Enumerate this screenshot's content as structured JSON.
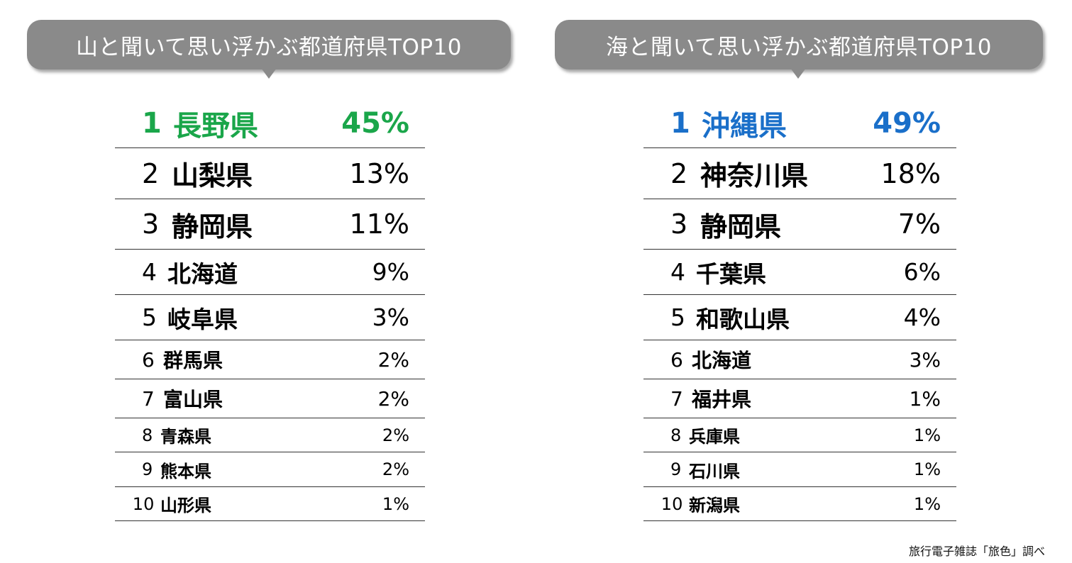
{
  "chart_data": [
    {
      "type": "table",
      "title": "山と聞いて思い浮かぶ都道府県TOP10",
      "highlight_color": "#1aa64a",
      "rows": [
        {
          "rank": "1",
          "name": "長野県",
          "value": "45%"
        },
        {
          "rank": "2",
          "name": "山梨県",
          "value": "13%"
        },
        {
          "rank": "3",
          "name": "静岡県",
          "value": "11%"
        },
        {
          "rank": "4",
          "name": "北海道",
          "value": "9%"
        },
        {
          "rank": "5",
          "name": "岐阜県",
          "value": "3%"
        },
        {
          "rank": "6",
          "name": "群馬県",
          "value": "2%"
        },
        {
          "rank": "7",
          "name": "富山県",
          "value": "2%"
        },
        {
          "rank": "8",
          "name": "青森県",
          "value": "2%"
        },
        {
          "rank": "9",
          "name": "熊本県",
          "value": "2%"
        },
        {
          "rank": "10",
          "name": "山形県",
          "value": "1%"
        }
      ]
    },
    {
      "type": "table",
      "title": "海と聞いて思い浮かぶ都道府県TOP10",
      "highlight_color": "#1a6fc9",
      "rows": [
        {
          "rank": "1",
          "name": "沖縄県",
          "value": "49%"
        },
        {
          "rank": "2",
          "name": "神奈川県",
          "value": "18%"
        },
        {
          "rank": "3",
          "name": "静岡県",
          "value": "7%"
        },
        {
          "rank": "4",
          "name": "千葉県",
          "value": "6%"
        },
        {
          "rank": "5",
          "name": "和歌山県",
          "value": "4%"
        },
        {
          "rank": "6",
          "name": "北海道",
          "value": "3%"
        },
        {
          "rank": "7",
          "name": "福井県",
          "value": "1%"
        },
        {
          "rank": "8",
          "name": "兵庫県",
          "value": "1%"
        },
        {
          "rank": "9",
          "name": "石川県",
          "value": "1%"
        },
        {
          "rank": "10",
          "name": "新潟県",
          "value": "1%"
        }
      ]
    }
  ],
  "source": "旅行電子雑誌「旅色」調べ"
}
